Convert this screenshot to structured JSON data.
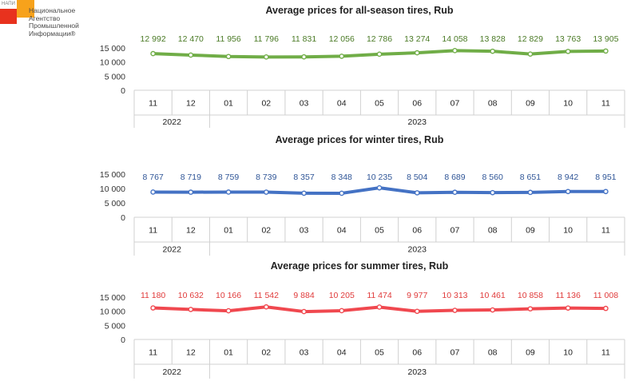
{
  "logo": {
    "small_label": "НАПИ",
    "text_lines": [
      "Национальное",
      "Агентство",
      "Промышленной",
      "Информации®"
    ],
    "colors": {
      "red": "#e8321e",
      "orange": "#f7a21b"
    }
  },
  "axis": {
    "months": [
      "11",
      "12",
      "01",
      "02",
      "03",
      "04",
      "05",
      "06",
      "07",
      "08",
      "09",
      "10",
      "11"
    ],
    "years": [
      {
        "label": "2022",
        "span": [
          0,
          1
        ]
      },
      {
        "label": "2023",
        "span": [
          2,
          12
        ]
      }
    ],
    "y_ticks": [
      0,
      5000,
      10000,
      15000
    ],
    "y_tick_labels": [
      "0",
      "5 000",
      "10 000",
      "15 000"
    ]
  },
  "chart_data": [
    {
      "type": "line",
      "title": "Average prices for all-season tires, Rub",
      "color": "#70ad47",
      "label_color": "#4a7a25",
      "ylim": [
        0,
        15000
      ],
      "categories": [
        "11",
        "12",
        "01",
        "02",
        "03",
        "04",
        "05",
        "06",
        "07",
        "08",
        "09",
        "10",
        "11"
      ],
      "values": [
        12992,
        12470,
        11956,
        11796,
        11831,
        12056,
        12786,
        13274,
        14058,
        13828,
        12829,
        13763,
        13905
      ],
      "value_labels": [
        "12 992",
        "12 470",
        "11 956",
        "11 796",
        "11 831",
        "12 056",
        "12 786",
        "13 274",
        "14 058",
        "13 828",
        "12 829",
        "13 763",
        "13 905"
      ]
    },
    {
      "type": "line",
      "title": "Average prices for winter tires, Rub",
      "color": "#4472c4",
      "label_color": "#2f5597",
      "ylim": [
        0,
        15000
      ],
      "categories": [
        "11",
        "12",
        "01",
        "02",
        "03",
        "04",
        "05",
        "06",
        "07",
        "08",
        "09",
        "10",
        "11"
      ],
      "values": [
        8767,
        8719,
        8759,
        8739,
        8357,
        8348,
        10235,
        8504,
        8689,
        8560,
        8651,
        8942,
        8951
      ],
      "value_labels": [
        "8 767",
        "8 719",
        "8 759",
        "8 739",
        "8 357",
        "8 348",
        "10 235",
        "8 504",
        "8 689",
        "8 560",
        "8 651",
        "8 942",
        "8 951"
      ]
    },
    {
      "type": "line",
      "title": "Average prices for summer tires, Rub",
      "color": "#f0484f",
      "label_color": "#e03a3a",
      "ylim": [
        0,
        15000
      ],
      "categories": [
        "11",
        "12",
        "01",
        "02",
        "03",
        "04",
        "05",
        "06",
        "07",
        "08",
        "09",
        "10",
        "11"
      ],
      "values": [
        11180,
        10632,
        10166,
        11542,
        9884,
        10205,
        11474,
        9977,
        10313,
        10461,
        10858,
        11136,
        11008
      ],
      "value_labels": [
        "11 180",
        "10 632",
        "10 166",
        "11 542",
        "9 884",
        "10 205",
        "11 474",
        "9 977",
        "10 313",
        "10 461",
        "10 858",
        "11 136",
        "11 008"
      ]
    }
  ]
}
